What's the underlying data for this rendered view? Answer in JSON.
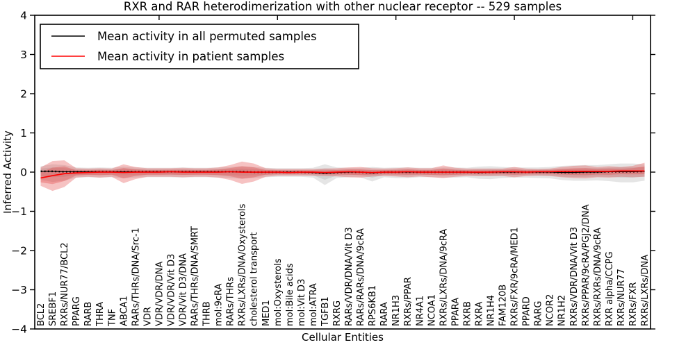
{
  "chart_data": {
    "type": "line",
    "title": "RXR and RAR heterodimerization with other nuclear receptor -- 529 samples",
    "xlabel": "Cellular Entities",
    "ylabel": "Inferred Activity",
    "ylim": [
      -4,
      4
    ],
    "yticks": [
      -4,
      -3,
      -2,
      -1,
      0,
      1,
      2,
      3,
      4
    ],
    "top_tick_positions": [
      10,
      20,
      30,
      40,
      50
    ],
    "grid": false,
    "legend_position": "upper left",
    "inner_band_scale": 0.55,
    "categories": [
      "BCL2",
      "SREBF1",
      "RXRs/NUR77/BCL2",
      "PPARG",
      "RARB",
      "THRA",
      "TNF",
      "ABCA1",
      "RARs/THRs/DNA/Src-1",
      "VDR",
      "VDR/VDR/DNA",
      "VDR/VDR/Vit D3",
      "VDR/Vit D3/DNA",
      "RARs/THRs/DNA/SMRT",
      "THRB",
      "mol:9cRA",
      "RARs/THRs",
      "RXRs/LXRs/DNA/Oxysterols",
      "cholesterol transport",
      "MED1",
      "mol:Oxysterols",
      "mol:Bile acids",
      "mol:Vit D3",
      "mol:ATRA",
      "TGFB1",
      "RXRG",
      "RARs/VDR/DNA/Vit D3",
      "RARs/RARs/DNA/9cRA",
      "RPS6KB1",
      "RARA",
      "NR1H3",
      "RXRs/PPAR",
      "NR4A1",
      "NCOA1",
      "RXRs/LXRs/DNA/9cRA",
      "PPARA",
      "RXRB",
      "RXRA",
      "NR1H4",
      "FAM120B",
      "RXRs/FXR/9cRA/MED1",
      "PPARD",
      "RARG",
      "NCOR2",
      "NR1H2",
      "RXRs/VDR/DNA/Vit D3",
      "RXRs/PPAR/9cRA/PGJ2/DNA",
      "RXRs/RXRs/DNA/9cRA",
      "RXR alpha/CCPG",
      "RXRs/NUR77",
      "RXRs/FXR",
      "RXRs/LXRs/DNA"
    ],
    "series": [
      {
        "name": "Mean activity in all permuted samples",
        "color": "#000000",
        "band_color": "#999999",
        "values": [
          0.02,
          0.02,
          0.01,
          0.01,
          0.01,
          0.01,
          0.01,
          0.01,
          0.01,
          0.01,
          0.01,
          0.01,
          0.01,
          0.01,
          0.01,
          0.01,
          0.01,
          0.01,
          0.0,
          0.0,
          0.0,
          0.0,
          0.0,
          -0.01,
          -0.03,
          -0.01,
          0.0,
          0.0,
          -0.02,
          0.0,
          0.0,
          0.0,
          0.0,
          0.0,
          0.0,
          0.0,
          0.0,
          -0.01,
          0.0,
          0.0,
          0.0,
          0.0,
          0.0,
          0.0,
          -0.01,
          -0.01,
          0.0,
          0.0,
          0.01,
          0.01,
          0.01,
          0.02
        ],
        "band_hi": [
          0.15,
          0.2,
          0.18,
          0.12,
          0.11,
          0.12,
          0.11,
          0.14,
          0.12,
          0.11,
          0.11,
          0.11,
          0.12,
          0.11,
          0.11,
          0.12,
          0.13,
          0.15,
          0.13,
          0.11,
          0.1,
          0.1,
          0.1,
          0.11,
          0.2,
          0.12,
          0.11,
          0.11,
          0.13,
          0.11,
          0.12,
          0.12,
          0.11,
          0.11,
          0.12,
          0.12,
          0.11,
          0.14,
          0.15,
          0.13,
          0.12,
          0.12,
          0.12,
          0.13,
          0.16,
          0.17,
          0.18,
          0.18,
          0.2,
          0.22,
          0.22,
          0.2
        ],
        "band_lo": [
          -0.2,
          -0.25,
          -0.22,
          -0.14,
          -0.13,
          -0.14,
          -0.13,
          -0.16,
          -0.14,
          -0.13,
          -0.13,
          -0.13,
          -0.14,
          -0.13,
          -0.13,
          -0.14,
          -0.15,
          -0.17,
          -0.15,
          -0.13,
          -0.12,
          -0.12,
          -0.12,
          -0.14,
          -0.33,
          -0.15,
          -0.13,
          -0.13,
          -0.24,
          -0.13,
          -0.15,
          -0.15,
          -0.13,
          -0.13,
          -0.14,
          -0.14,
          -0.13,
          -0.17,
          -0.18,
          -0.15,
          -0.14,
          -0.14,
          -0.15,
          -0.16,
          -0.2,
          -0.22,
          -0.22,
          -0.21,
          -0.23,
          -0.26,
          -0.26,
          -0.22
        ]
      },
      {
        "name": "Mean activity in patient samples",
        "color": "#ff0000",
        "band_color": "#e03535",
        "values": [
          -0.15,
          -0.09,
          -0.04,
          -0.02,
          -0.01,
          0.0,
          0.0,
          -0.01,
          0.0,
          0.0,
          0.0,
          0.01,
          0.0,
          0.0,
          0.0,
          0.0,
          0.01,
          0.0,
          0.0,
          0.0,
          0.0,
          -0.01,
          0.0,
          0.0,
          -0.01,
          0.0,
          0.01,
          0.0,
          -0.01,
          0.0,
          0.0,
          0.01,
          0.0,
          0.0,
          0.0,
          0.0,
          0.0,
          0.0,
          0.0,
          0.01,
          0.01,
          0.0,
          0.01,
          0.01,
          0.02,
          0.02,
          0.02,
          0.02,
          0.02,
          0.03,
          0.03,
          0.03
        ],
        "band_hi": [
          0.12,
          0.28,
          0.3,
          0.1,
          0.09,
          0.1,
          0.09,
          0.2,
          0.13,
          0.1,
          0.1,
          0.1,
          0.11,
          0.1,
          0.1,
          0.12,
          0.18,
          0.27,
          0.22,
          0.1,
          0.08,
          0.08,
          0.08,
          0.08,
          0.09,
          0.1,
          0.12,
          0.13,
          0.1,
          0.09,
          0.1,
          0.12,
          0.1,
          0.1,
          0.17,
          0.11,
          0.09,
          0.09,
          0.09,
          0.09,
          0.13,
          0.09,
          0.08,
          0.09,
          0.13,
          0.16,
          0.17,
          0.13,
          0.15,
          0.13,
          0.16,
          0.24
        ],
        "band_lo": [
          -0.35,
          -0.48,
          -0.38,
          -0.14,
          -0.12,
          -0.14,
          -0.12,
          -0.28,
          -0.18,
          -0.12,
          -0.12,
          -0.12,
          -0.13,
          -0.12,
          -0.12,
          -0.14,
          -0.2,
          -0.3,
          -0.24,
          -0.12,
          -0.09,
          -0.09,
          -0.09,
          -0.09,
          -0.1,
          -0.11,
          -0.13,
          -0.14,
          -0.11,
          -0.1,
          -0.11,
          -0.13,
          -0.11,
          -0.13,
          -0.15,
          -0.12,
          -0.1,
          -0.1,
          -0.1,
          -0.1,
          -0.13,
          -0.1,
          -0.09,
          -0.1,
          -0.13,
          -0.15,
          -0.16,
          -0.13,
          -0.14,
          -0.12,
          -0.13,
          -0.12
        ]
      }
    ]
  }
}
